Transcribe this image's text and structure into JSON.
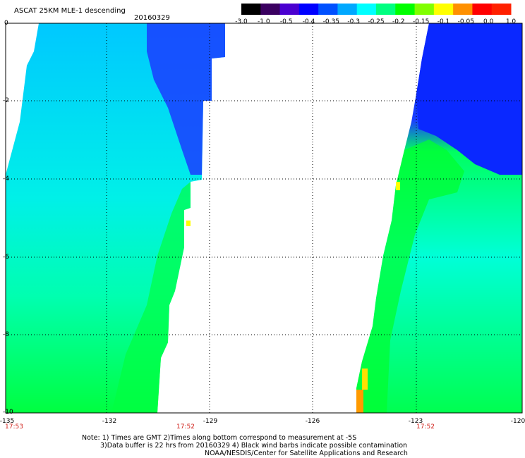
{
  "header": {
    "title": "ASCAT 25KM MLE-1 descending",
    "date": "20160329"
  },
  "colorbar": {
    "labels": [
      "-3.0",
      "-1.0",
      "-0.5",
      "-0.4",
      "-0.35",
      "-0.3",
      "-0.25",
      "-0.2",
      "-0.15",
      "-0.1",
      "-0.05",
      "0.0",
      "1.0"
    ],
    "colors": [
      "#000000",
      "#3a0060",
      "#4a00d0",
      "#0000ff",
      "#0050ff",
      "#00a8ff",
      "#00ffff",
      "#00ff80",
      "#00ff00",
      "#80ff00",
      "#ffff00",
      "#ff9000",
      "#ff0000",
      "#ff2000"
    ]
  },
  "axes": {
    "x_ticks": [
      "-135",
      "-132",
      "-129",
      "-126",
      "-123",
      "-120"
    ],
    "y_ticks": [
      "0",
      "-2",
      "-4",
      "-6",
      "-8",
      "-10"
    ]
  },
  "swath_times": [
    "17:53",
    "17:52",
    "17:52"
  ],
  "notes": [
    "Note: 1) Times are GMT 2)Times along bottom correspond to measurement at -5S",
    "3)Data buffer is 22 hrs from 20160329 4) Black wind barbs indicate possible contamination",
    "NOAA/NESDIS/Center for Satellite Applications and Research"
  ]
}
